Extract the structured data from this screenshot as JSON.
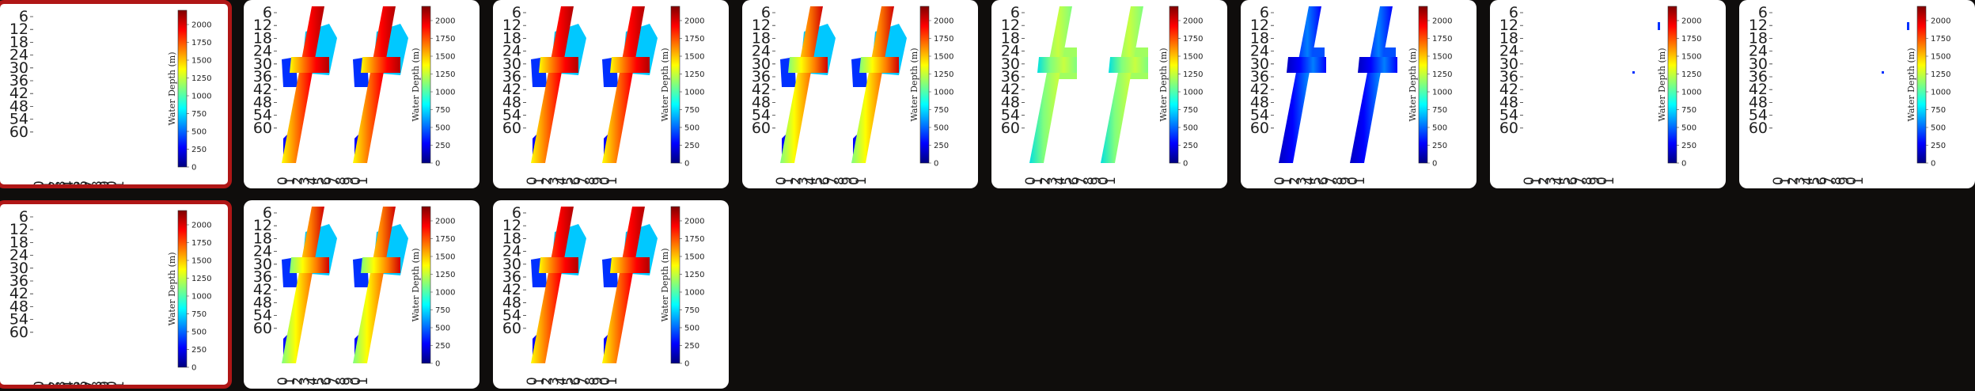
{
  "gallery": {
    "colorbar": {
      "label": "Water Depth (m)",
      "ticks": [
        "0",
        "250",
        "500",
        "750",
        "1000",
        "1250",
        "1500",
        "1750",
        "2000"
      ],
      "max": 2200,
      "colors": [
        "#00007f",
        "#0000ff",
        "#007fff",
        "#00ffff",
        "#7fff7f",
        "#ffff00",
        "#ff7f00",
        "#ff0000",
        "#7f0000"
      ]
    },
    "y_ticks": [
      "6",
      "12",
      "18",
      "24",
      "30",
      "36",
      "42",
      "48",
      "54",
      "60"
    ],
    "x_ticks": [
      "0",
      "1",
      "2",
      "3",
      "4",
      "5",
      "6",
      "7",
      "8",
      "9",
      "0",
      "1"
    ],
    "cards": [
      {
        "id": 1,
        "selected": true,
        "pattern": "empty"
      },
      {
        "id": 2,
        "selected": false,
        "pattern": "full-red"
      },
      {
        "id": 3,
        "selected": false,
        "pattern": "full-red"
      },
      {
        "id": 4,
        "selected": false,
        "pattern": "full-mixed"
      },
      {
        "id": 5,
        "selected": false,
        "pattern": "green"
      },
      {
        "id": 6,
        "selected": false,
        "pattern": "blue"
      },
      {
        "id": 7,
        "selected": false,
        "pattern": "sparse"
      },
      {
        "id": 8,
        "selected": false,
        "pattern": "sparse"
      },
      {
        "id": 9,
        "selected": true,
        "pattern": "empty"
      },
      {
        "id": 10,
        "selected": false,
        "pattern": "full-mixed"
      },
      {
        "id": 11,
        "selected": false,
        "pattern": "full-red"
      }
    ]
  }
}
